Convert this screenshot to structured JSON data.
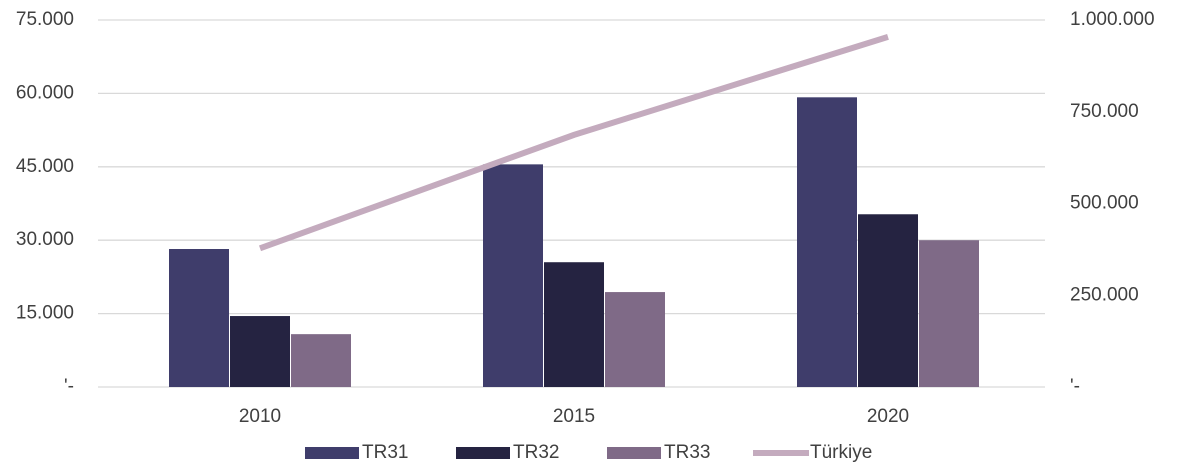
{
  "chart_data": {
    "type": "bar",
    "categories": [
      "2010",
      "2015",
      "2020"
    ],
    "series": [
      {
        "name": "TR31",
        "color": "#3f3d6b",
        "values": [
          28200,
          45500,
          59200
        ]
      },
      {
        "name": "TR32",
        "color": "#252341",
        "values": [
          14500,
          25500,
          35300
        ]
      },
      {
        "name": "TR33",
        "color": "#7f6a87",
        "values": [
          10800,
          19400,
          30000
        ]
      },
      {
        "name": "Türkiye",
        "color": "#c4abbe",
        "type": "line",
        "axis": "y2",
        "values": [
          378000,
          687000,
          954000
        ]
      }
    ],
    "ylim": [
      0,
      75000
    ],
    "yticks": [
      {
        "value": 0,
        "label": "'-"
      },
      {
        "value": 15000,
        "label": "15.000"
      },
      {
        "value": 30000,
        "label": "30.000"
      },
      {
        "value": 45000,
        "label": "45.000"
      },
      {
        "value": 60000,
        "label": "60.000"
      },
      {
        "value": 75000,
        "label": "75.000"
      }
    ],
    "y2lim": [
      0,
      1000000
    ],
    "y2ticks": [
      {
        "value": 0,
        "label": "'-"
      },
      {
        "value": 250000,
        "label": "250.000"
      },
      {
        "value": 500000,
        "label": "500.000"
      },
      {
        "value": 750000,
        "label": "750.000"
      },
      {
        "value": 1000000,
        "label": "1.000.000"
      }
    ],
    "grid": true,
    "legend": "bottom"
  }
}
